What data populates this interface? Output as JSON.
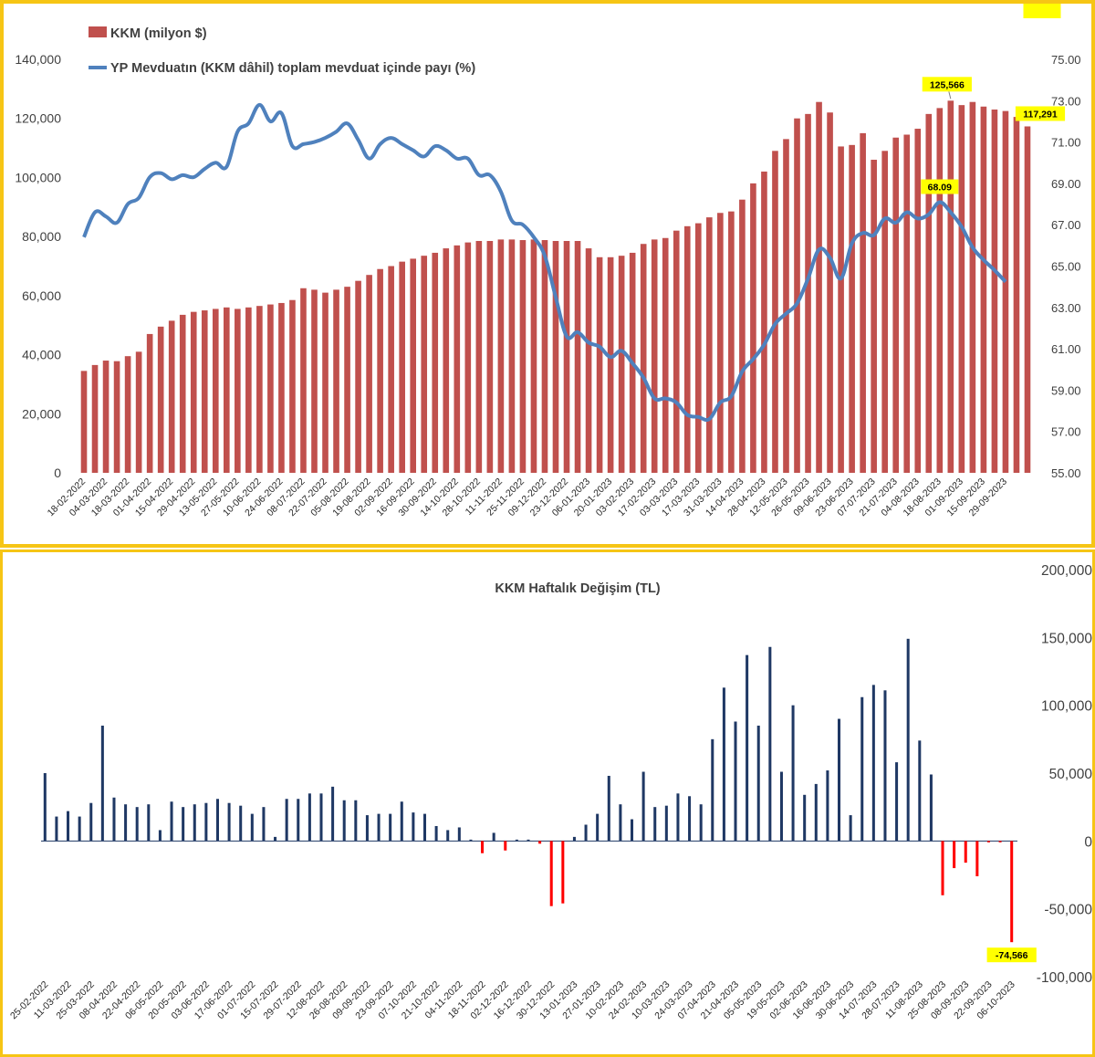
{
  "chart_data": [
    {
      "type": "bar+line",
      "legend": {
        "bar_label": "KKM (milyon $)",
        "line_label": "YP Mevduatın (KKM dâhil) toplam mevduat içinde payı (%)",
        "placement": "top-left"
      },
      "colors": {
        "bar": "#c0504d",
        "line": "#4f81bd"
      },
      "y_left": {
        "min": 0,
        "max": 140000,
        "ticks": [
          "0",
          "20,000",
          "40,000",
          "60,000",
          "80,000",
          "100,000",
          "120,000",
          "140,000"
        ]
      },
      "y_right": {
        "min": 55,
        "max": 75,
        "ticks": [
          "55.00",
          "57.00",
          "59.00",
          "61.00",
          "63.00",
          "65.00",
          "67.00",
          "69.00",
          "71.00",
          "73.00",
          "75.00"
        ]
      },
      "x_tick_labels": [
        "18-02-2022",
        "04-03-2022",
        "18-03-2022",
        "01-04-2022",
        "15-04-2022",
        "29-04-2022",
        "13-05-2022",
        "27-05-2022",
        "10-06-2022",
        "24-06-2022",
        "08-07-2022",
        "22-07-2022",
        "05-08-2022",
        "19-08-2022",
        "02-09-2022",
        "16-09-2022",
        "30-09-2022",
        "14-10-2022",
        "28-10-2022",
        "11-11-2022",
        "25-11-2022",
        "09-12-2022",
        "23-12-2022",
        "06-01-2023",
        "20-01-2023",
        "03-02-2023",
        "17-02-2023",
        "03-03-2023",
        "17-03-2023",
        "31-03-2023",
        "14-04-2023",
        "28-04-2023",
        "12-05-2023",
        "26-05-2023",
        "09-06-2023",
        "23-06-2023",
        "07-07-2023",
        "21-07-2023",
        "04-08-2023",
        "18-08-2023",
        "01-09-2023",
        "15-09-2023",
        "29-09-2023"
      ],
      "bar_values": [
        34500,
        36500,
        38000,
        37800,
        39500,
        41000,
        47000,
        49500,
        51500,
        53500,
        54500,
        55000,
        55500,
        56000,
        55500,
        56000,
        56500,
        57000,
        57500,
        58500,
        62500,
        62000,
        61000,
        62000,
        63000,
        65000,
        67000,
        69000,
        70000,
        71500,
        72500,
        73500,
        74500,
        76000,
        77000,
        78000,
        78500,
        78500,
        79000,
        79000,
        78800,
        79000,
        78800,
        78500,
        78500,
        78500,
        76000,
        73000,
        73000,
        73500,
        74500,
        77500,
        79000,
        79500,
        82000,
        83500,
        84500,
        86500,
        88000,
        88500,
        92500,
        98000,
        102000,
        109000,
        113000,
        120000,
        121500,
        125566,
        122000,
        110500,
        111000,
        115000,
        106000,
        109000,
        113500,
        114500,
        116500,
        121500,
        123500,
        126000,
        124500,
        125566,
        124000,
        123000,
        122500,
        120500,
        117291
      ],
      "line_values": [
        66.4,
        67.6,
        67.4,
        67.1,
        68.0,
        68.3,
        69.3,
        69.5,
        69.2,
        69.4,
        69.3,
        69.7,
        70.0,
        69.8,
        71.5,
        71.9,
        72.8,
        72.0,
        72.4,
        70.8,
        70.9,
        71.0,
        71.2,
        71.5,
        71.9,
        71.1,
        70.2,
        70.9,
        71.2,
        70.9,
        70.6,
        70.3,
        70.8,
        70.6,
        70.2,
        70.2,
        69.4,
        69.4,
        68.6,
        67.2,
        67.0,
        66.4,
        65.5,
        63.5,
        61.6,
        61.8,
        61.3,
        61.1,
        60.6,
        60.9,
        60.3,
        59.6,
        58.6,
        58.6,
        58.4,
        57.8,
        57.7,
        57.6,
        58.4,
        58.7,
        59.9,
        60.5,
        61.2,
        62.2,
        62.7,
        63.2,
        64.4,
        65.8,
        65.4,
        64.4,
        66.1,
        66.6,
        66.5,
        67.3,
        67.1,
        67.6,
        67.3,
        67.5,
        68.09,
        67.6,
        66.9,
        65.9,
        65.3,
        64.8,
        64.24
      ],
      "callouts": {
        "bar_peak": "125,566",
        "bar_last": "117,291",
        "line_peak": "68.09",
        "line_last": "64.24"
      }
    },
    {
      "type": "bar",
      "title": "KKM Haftalık Değişim (TL)",
      "colors": {
        "positive": "#1f3864",
        "negative": "#ff0000"
      },
      "y": {
        "min": -100000,
        "max": 200000,
        "ticks": [
          "-100,000",
          "-50,000",
          "0",
          "50,000",
          "100,000",
          "150,000",
          "200,000"
        ]
      },
      "x_tick_labels": [
        "25-02-2022",
        "11-03-2022",
        "25-03-2022",
        "08-04-2022",
        "22-04-2022",
        "06-05-2022",
        "20-05-2022",
        "03-06-2022",
        "17-06-2022",
        "01-07-2022",
        "15-07-2022",
        "29-07-2022",
        "12-08-2022",
        "26-08-2022",
        "09-09-2022",
        "23-09-2022",
        "07-10-2022",
        "21-10-2022",
        "04-11-2022",
        "18-11-2022",
        "02-12-2022",
        "16-12-2022",
        "30-12-2022",
        "13-01-2023",
        "27-01-2023",
        "10-02-2023",
        "24-02-2023",
        "10-03-2023",
        "24-03-2023",
        "07-04-2023",
        "21-04-2023",
        "05-05-2023",
        "19-05-2023",
        "02-06-2023",
        "16-06-2023",
        "30-06-2023",
        "14-07-2023",
        "28-07-2023",
        "11-08-2023",
        "25-08-2023",
        "08-09-2023",
        "22-09-2023",
        "06-10-2023"
      ],
      "values": [
        50000,
        18000,
        22000,
        18000,
        28000,
        85000,
        32000,
        27000,
        25000,
        27000,
        8000,
        29000,
        25000,
        27000,
        28000,
        31000,
        28000,
        26000,
        20000,
        25000,
        3000,
        31000,
        31000,
        35000,
        35000,
        40000,
        30000,
        30000,
        19000,
        20000,
        20000,
        29000,
        21000,
        20000,
        11000,
        8000,
        10000,
        1000,
        -9000,
        6000,
        -7000,
        1000,
        1000,
        -2000,
        -48000,
        -46000,
        3000,
        12000,
        20000,
        48000,
        27000,
        16000,
        51000,
        25000,
        26000,
        35000,
        33000,
        27000,
        75000,
        113000,
        88000,
        137000,
        85000,
        143000,
        51000,
        100000,
        34000,
        42000,
        52000,
        90000,
        19000,
        106000,
        115000,
        111000,
        58000,
        149000,
        74000,
        49000,
        -40000,
        -20000,
        -16000,
        -26000,
        -1000,
        -1000,
        -74566
      ],
      "callouts": {
        "last": "-74,566"
      }
    }
  ]
}
